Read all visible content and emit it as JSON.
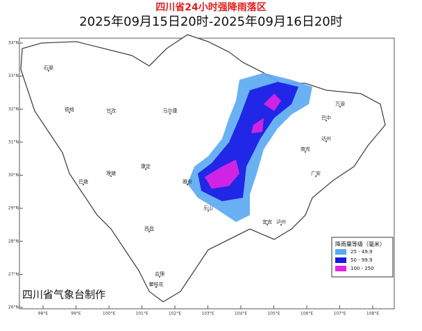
{
  "header": {
    "title": "四川省24小时强降雨落区",
    "subtitle": "2025年09月15日20时-2025年09月16日20时"
  },
  "map": {
    "lat_ticks": [
      {
        "value": 34,
        "label": "34°N"
      },
      {
        "value": 33,
        "label": "33°N"
      },
      {
        "value": 32,
        "label": "32°N"
      },
      {
        "value": 31,
        "label": "31°N"
      },
      {
        "value": 30,
        "label": "30°N"
      },
      {
        "value": 29,
        "label": "29°N"
      },
      {
        "value": 28,
        "label": "28°N"
      },
      {
        "value": 27,
        "label": "27°N"
      },
      {
        "value": 26,
        "label": "26°N"
      }
    ],
    "lon_ticks": [
      {
        "value": 98,
        "label": "98°E"
      },
      {
        "value": 99,
        "label": "99°E"
      },
      {
        "value": 100,
        "label": "100°E"
      },
      {
        "value": 101,
        "label": "101°E"
      },
      {
        "value": 102,
        "label": "102°E"
      },
      {
        "value": 103,
        "label": "103°E"
      },
      {
        "value": 104,
        "label": "104°E"
      },
      {
        "value": 105,
        "label": "105°E"
      },
      {
        "value": 106,
        "label": "106°E"
      },
      {
        "value": 107,
        "label": "107°E"
      },
      {
        "value": 108,
        "label": "108°E"
      }
    ],
    "places": [
      "石渠",
      "德格",
      "甘孜",
      "巴塘",
      "理塘",
      "康定",
      "马尔康",
      "雅安",
      "乐山",
      "宜宾",
      "西昌",
      "会理",
      "巴中",
      "万源",
      "达州",
      "南充",
      "广安",
      "泸州",
      "攀枝花"
    ]
  },
  "legend": {
    "title": "降雨量等级（毫米）",
    "items": [
      {
        "label": "25 - 49.9",
        "color": "#5aa8f2"
      },
      {
        "label": "50 - 99.9",
        "color": "#1818e6"
      },
      {
        "label": "100 - 250",
        "color": "#e424e4"
      }
    ]
  },
  "credit": "四川省气象台制作"
}
